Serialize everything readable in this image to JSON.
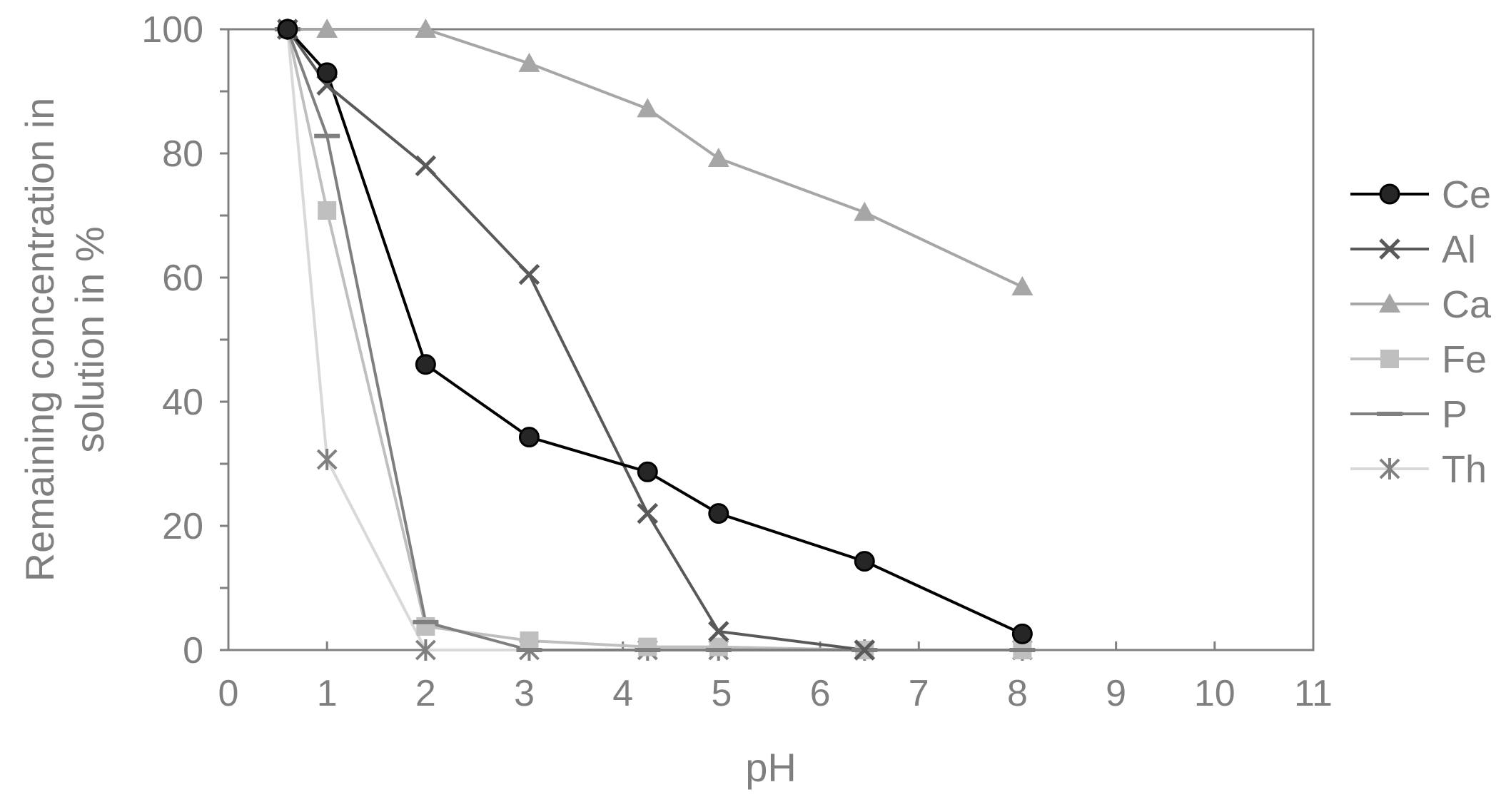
{
  "chart_data": {
    "type": "line",
    "title": "",
    "xlabel": "pH",
    "ylabel_lines": [
      "Remaining concentration in",
      "solution in %"
    ],
    "xlim": [
      0,
      11
    ],
    "ylim": [
      0,
      100
    ],
    "x_ticks": [
      "0",
      "1",
      "2",
      "3",
      "4",
      "5",
      "6",
      "7",
      "8",
      "9",
      "10",
      "11"
    ],
    "y_ticks": [
      "0",
      "20",
      "40",
      "60",
      "80",
      "100"
    ],
    "grid": false,
    "legend_position": "right",
    "series": [
      {
        "name": "Ce",
        "color": "#000000",
        "line_color": "#000000",
        "marker": "circle",
        "x": [
          0.6,
          1.0,
          2.0,
          3.05,
          4.25,
          4.97,
          6.45,
          8.05
        ],
        "y": [
          100,
          93,
          46,
          34.3,
          28.7,
          22,
          14.3,
          2.6
        ]
      },
      {
        "name": "Al",
        "color": "#595959",
        "line_color": "#595959",
        "marker": "x",
        "x": [
          0.6,
          1.0,
          2.0,
          3.05,
          4.25,
          4.97,
          6.45
        ],
        "y": [
          100,
          91,
          78,
          60.5,
          22,
          3,
          0
        ]
      },
      {
        "name": "Ca",
        "color": "#a6a6a6",
        "line_color": "#a6a6a6",
        "marker": "triangle",
        "x": [
          0.6,
          1.0,
          2.0,
          3.05,
          4.25,
          4.97,
          6.45,
          8.05
        ],
        "y": [
          100,
          100,
          100,
          94.5,
          87.2,
          79.2,
          70.5,
          58.5
        ]
      },
      {
        "name": "Fe",
        "color": "#bfbfbf",
        "line_color": "#bfbfbf",
        "marker": "square",
        "x": [
          0.6,
          1.0,
          2.0,
          3.05,
          4.25,
          4.97,
          6.45,
          8.05
        ],
        "y": [
          100,
          70.8,
          3.8,
          1.5,
          0.5,
          0.5,
          0,
          0
        ]
      },
      {
        "name": "P",
        "color": "#7f7f7f",
        "line_color": "#7f7f7f",
        "marker": "dash",
        "x": [
          0.6,
          1.0,
          2.0,
          3.05,
          4.25,
          4.97,
          6.45,
          8.05
        ],
        "y": [
          100,
          82.8,
          4.5,
          0,
          0,
          0,
          0,
          0
        ]
      },
      {
        "name": "Th",
        "color": "#808080",
        "line_color": "#d9d9d9",
        "marker": "asterisk",
        "x": [
          0.6,
          1.0,
          2.0,
          3.05,
          4.25,
          4.97,
          6.45,
          8.05
        ],
        "y": [
          100,
          30.7,
          0,
          0,
          0,
          0,
          0,
          0
        ]
      }
    ]
  }
}
